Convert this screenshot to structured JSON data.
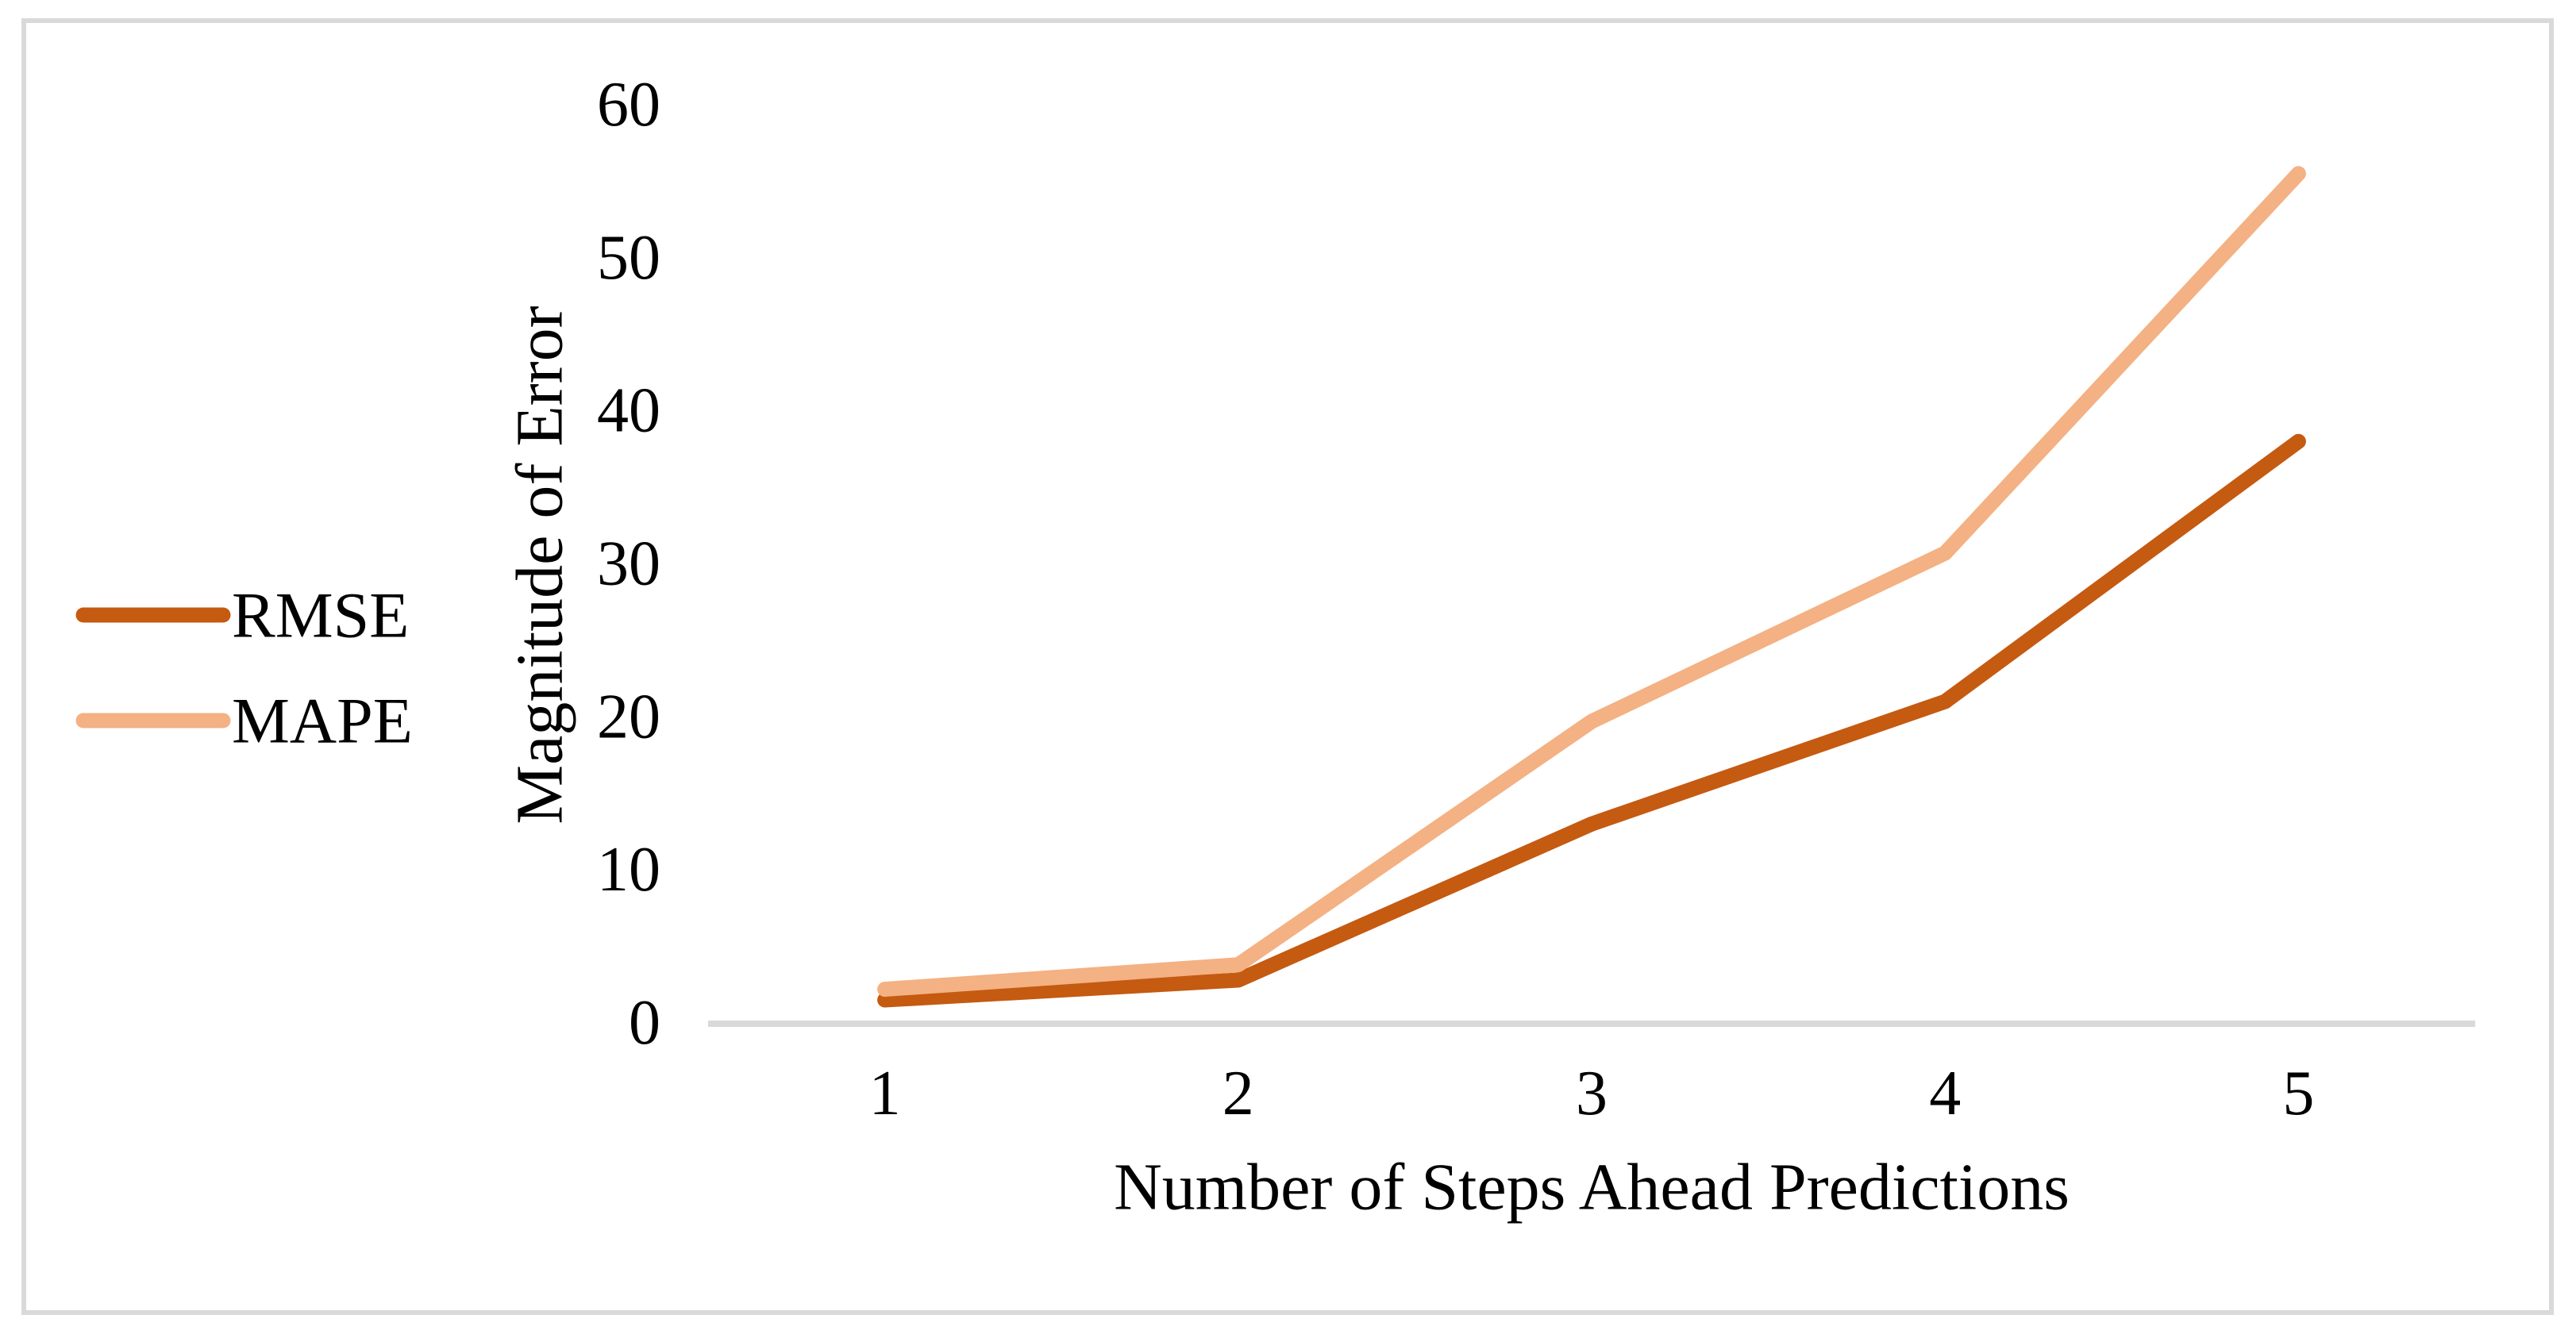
{
  "chart_data": {
    "type": "line",
    "title": "",
    "xlabel": "Number of Steps Ahead Predictions",
    "ylabel": "Magnitude of Error",
    "categories": [
      "1",
      "2",
      "3",
      "4",
      "5"
    ],
    "series": [
      {
        "name": "RMSE",
        "color": "#C55A11",
        "values": [
          1.5,
          2.8,
          13.0,
          21.0,
          38.0
        ]
      },
      {
        "name": "MAPE",
        "color": "#F4B183",
        "values": [
          2.2,
          3.8,
          19.7,
          30.7,
          55.5
        ]
      }
    ],
    "y_ticks": [
      0,
      10,
      20,
      30,
      40,
      50,
      60
    ],
    "ylim": [
      0,
      60
    ],
    "grid": false,
    "legend_position": "middle-left",
    "legend_entries": [
      "RMSE",
      "MAPE"
    ],
    "axis_line_color": "#D9D9D9",
    "border_color": "#D9D9D9",
    "text_color": "#000000",
    "background": "#FFFFFF"
  }
}
